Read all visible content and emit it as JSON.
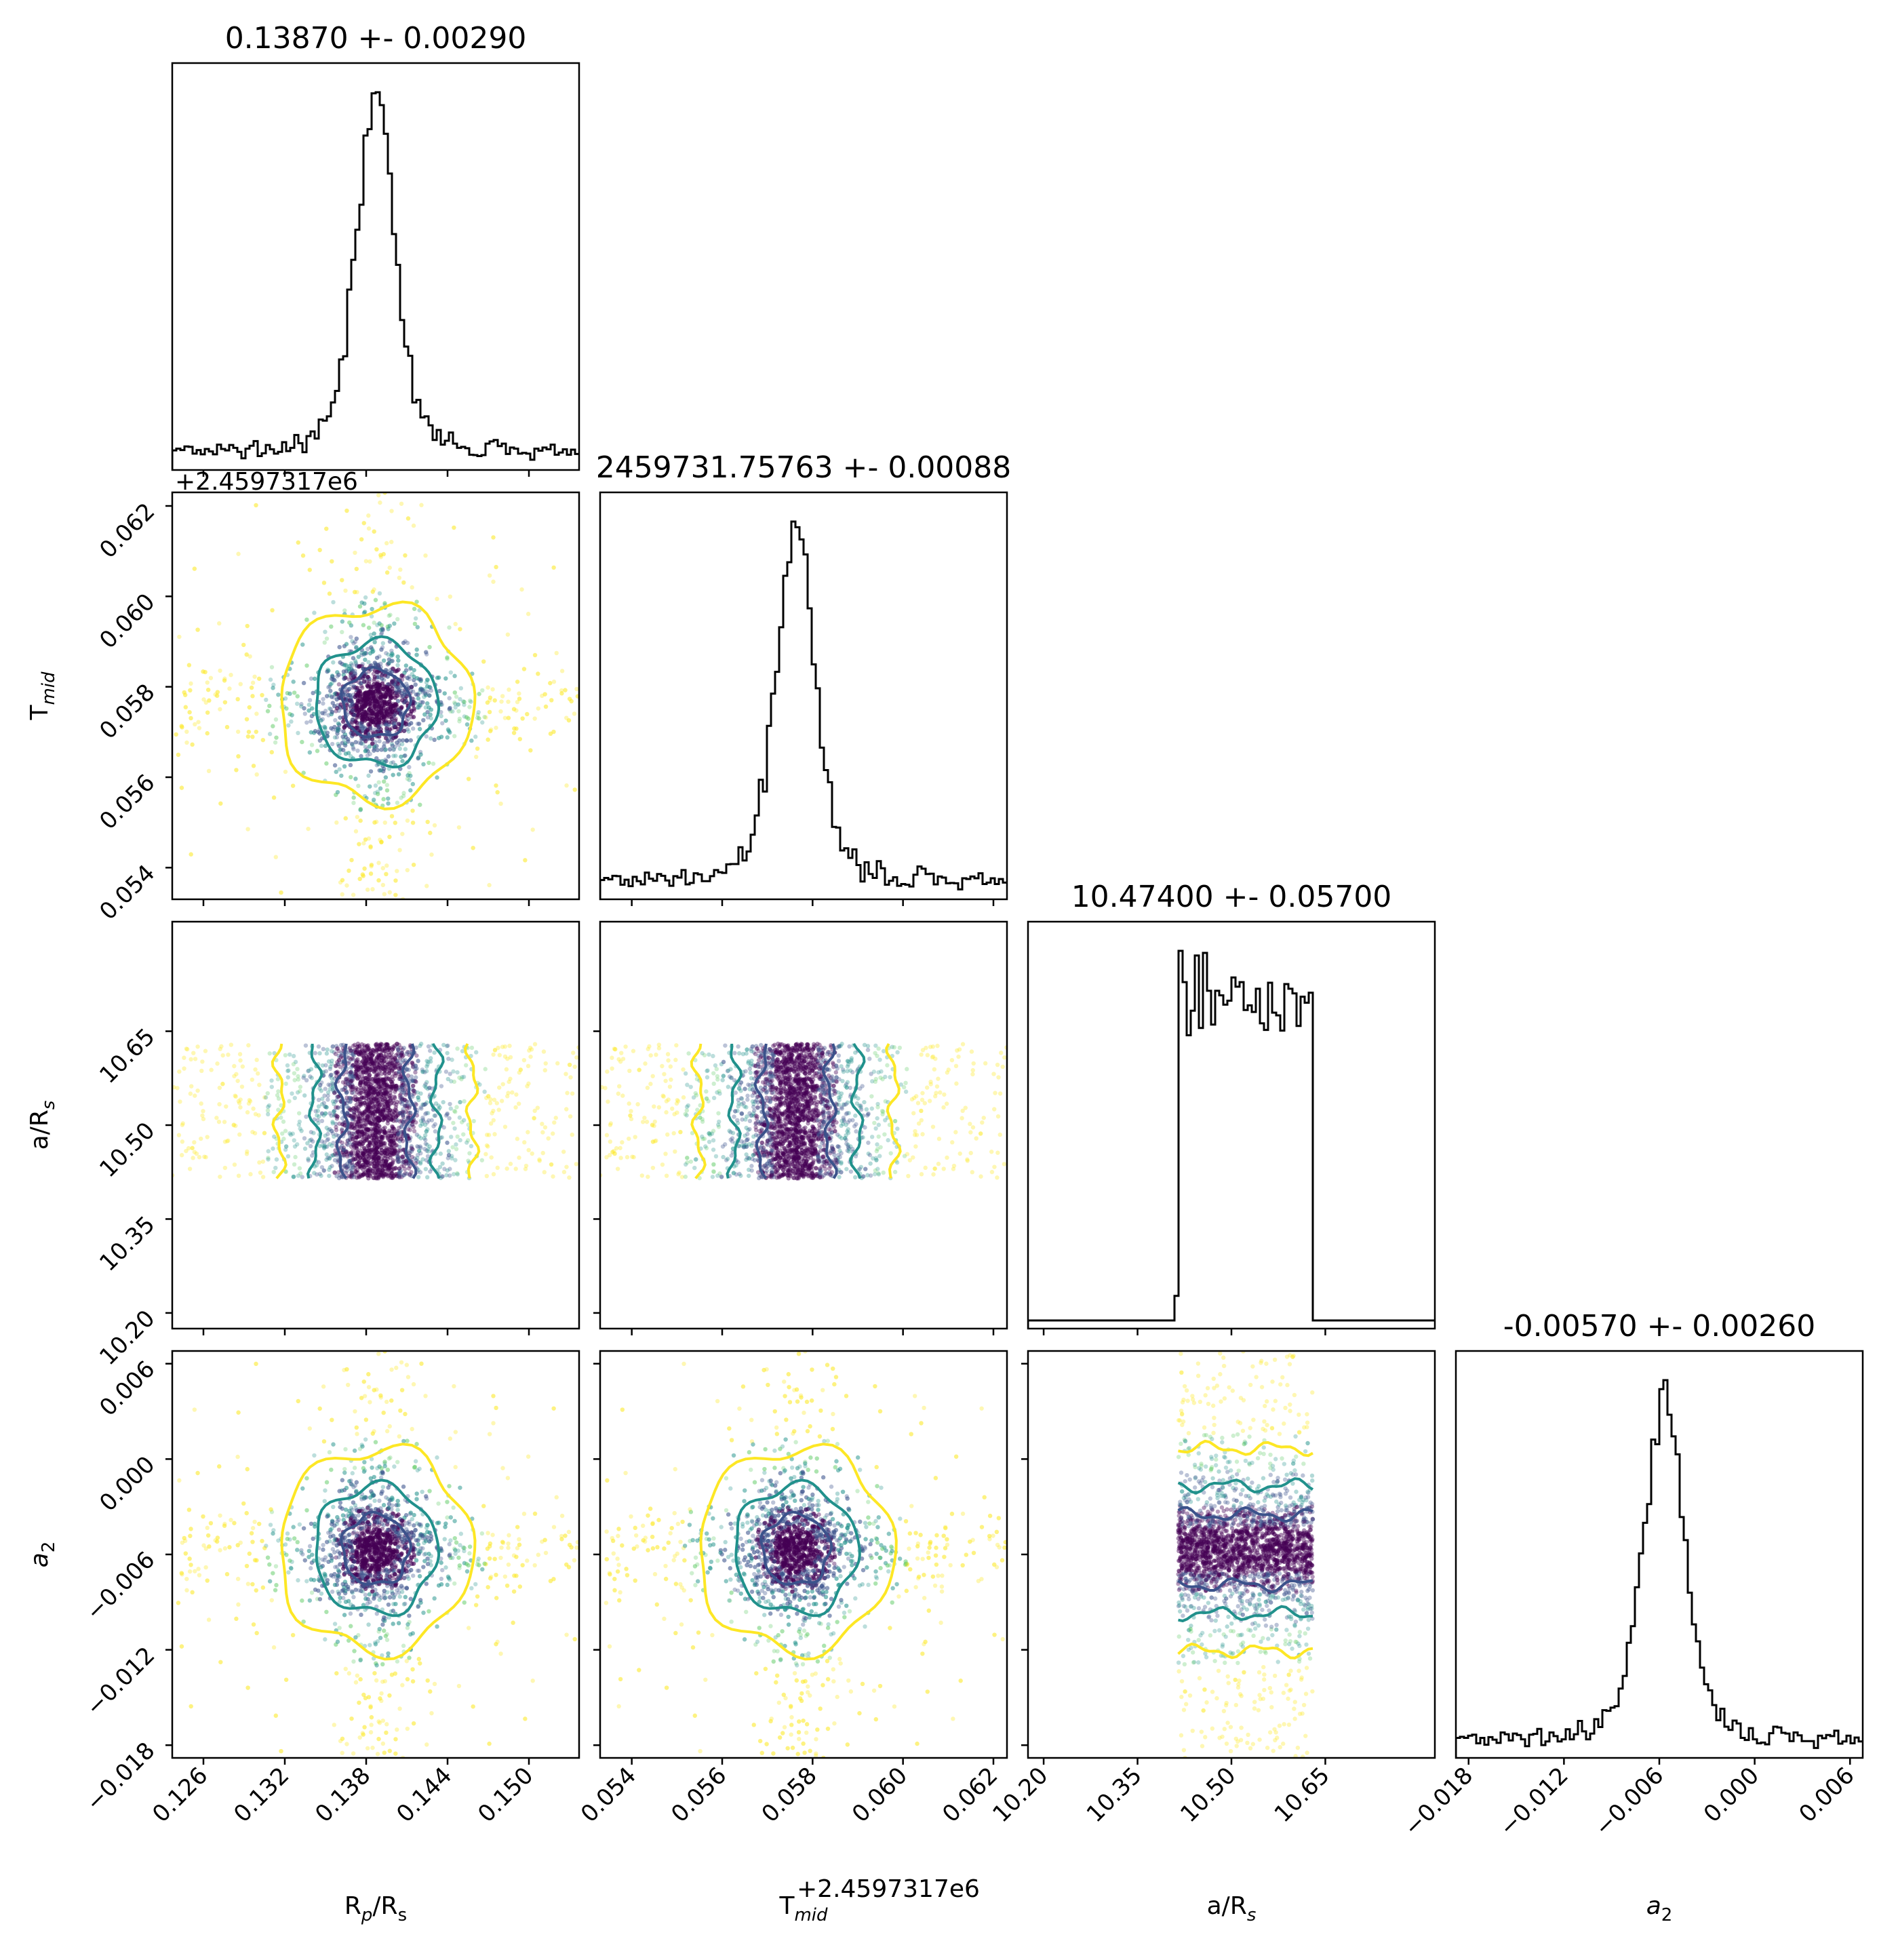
{
  "chart_data": {
    "type": "corner",
    "parameters": [
      {
        "key": "rp",
        "label_main": "R",
        "label_sub": "p",
        "label_tail": "/R",
        "label_tail_sub": "s",
        "sub_italic": true,
        "tail_sub_italic": false,
        "title": "0.13870 +- 0.00290",
        "median": 0.1387,
        "sigma": 0.0029,
        "range": [
          0.1237,
          0.1537
        ],
        "ticks": [
          0.126,
          0.132,
          0.138,
          0.144,
          0.15
        ],
        "tick_labels": [
          "0.126",
          "0.132",
          "0.138",
          "0.144",
          "0.150"
        ]
      },
      {
        "key": "tmid",
        "label_main": "T",
        "label_sub": "mid",
        "label_tail": "",
        "label_tail_sub": "",
        "sub_italic": true,
        "tail_sub_italic": false,
        "title": "2459731.75763 +- 0.00088",
        "median": 0.05763,
        "sigma": 0.00088,
        "range": [
          0.0533,
          0.0623
        ],
        "ticks": [
          0.054,
          0.056,
          0.058,
          0.06,
          0.062
        ],
        "tick_labels": [
          "0.054",
          "0.056",
          "0.058",
          "0.060",
          "0.062"
        ],
        "offset_label": "+2.4597317e6"
      },
      {
        "key": "ars",
        "label_main": "a/R",
        "label_sub": "s",
        "label_tail": "",
        "label_tail_sub": "",
        "sub_italic": true,
        "tail_sub_italic": false,
        "title": "10.47400 +- 0.05700",
        "median": 10.474,
        "sigma": 0.057,
        "range": [
          10.175,
          10.825
        ],
        "ticks": [
          10.2,
          10.35,
          10.5,
          10.65
        ],
        "tick_labels": [
          "10.20",
          "10.35",
          "10.50",
          "10.65"
        ],
        "uniform": [
          10.415,
          10.63
        ]
      },
      {
        "key": "a2",
        "label_main": "a",
        "label_sub": "2",
        "label_tail": "",
        "label_tail_sub": "",
        "sub_italic": false,
        "tail_sub_italic": false,
        "main_italic": true,
        "title": "-0.00570 +- 0.00260",
        "median": -0.0057,
        "sigma": 0.0026,
        "range": [
          -0.0188,
          0.0068
        ],
        "ticks": [
          -0.018,
          -0.012,
          -0.006,
          0.0,
          0.006
        ],
        "tick_labels": [
          "−0.018",
          "−0.012",
          "−0.006",
          "0.000",
          "0.006"
        ]
      }
    ],
    "contour_levels": [
      "0.5-sigma",
      "1-sigma",
      "2-sigma"
    ],
    "colors": {
      "inner": "#3b528b",
      "middle": "#21918c",
      "outer": "#fde725",
      "core": "#440154",
      "hist": "#000000"
    },
    "histogram_bins": 100
  }
}
